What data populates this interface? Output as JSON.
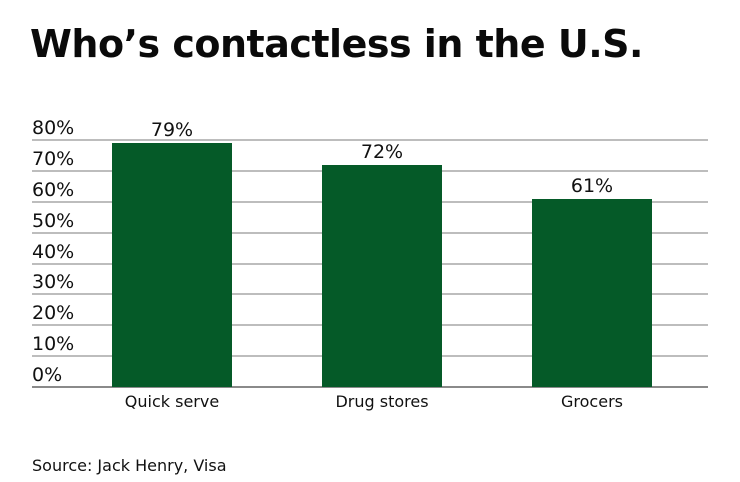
{
  "title": "Who’s contactless in the U.S.",
  "source": "Source: Jack Henry, Visa",
  "colors": {
    "bar": "#055a28",
    "grid": "#bdbdbd",
    "baseline": "#8a8a8a"
  },
  "y_ticks": [
    "80%",
    "70%",
    "60%",
    "50%",
    "40%",
    "30%",
    "20%",
    "10%",
    "0%"
  ],
  "bars": [
    {
      "category": "Quick serve",
      "value": 79,
      "label": "79%"
    },
    {
      "category": "Drug stores",
      "value": 72,
      "label": "72%"
    },
    {
      "category": "Grocers",
      "value": 61,
      "label": "61%"
    }
  ],
  "chart_data": {
    "type": "bar",
    "title": "Who’s contactless in the U.S.",
    "categories": [
      "Quick serve",
      "Drug stores",
      "Grocers"
    ],
    "values": [
      79,
      72,
      61
    ],
    "data_labels": [
      "79%",
      "72%",
      "61%"
    ],
    "xlabel": "",
    "ylabel": "",
    "ylim": [
      0,
      80
    ],
    "y_tick_labels": [
      "0%",
      "10%",
      "20%",
      "30%",
      "40%",
      "50%",
      "60%",
      "70%",
      "80%"
    ],
    "grid": true,
    "legend": null,
    "source": "Source: Jack Henry, Visa"
  }
}
